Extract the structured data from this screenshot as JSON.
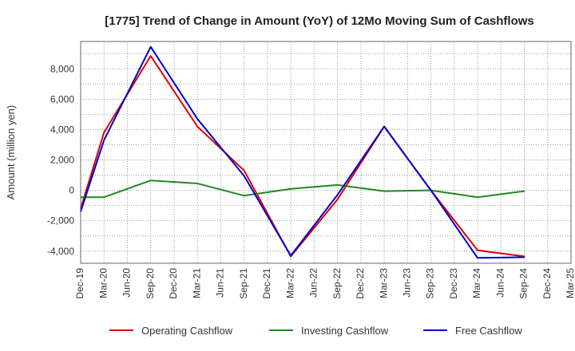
{
  "chart_data": {
    "type": "line",
    "title": "[1775]  Trend of Change in Amount (YoY) of 12Mo Moving Sum of Cashflows",
    "xlabel": "",
    "ylabel": "Amount (million yen)",
    "categories": [
      "Dec-19",
      "Mar-20",
      "Jun-20",
      "Sep-20",
      "Dec-20",
      "Mar-21",
      "Jun-21",
      "Sep-21",
      "Dec-21",
      "Mar-22",
      "Jun-22",
      "Sep-22",
      "Dec-22",
      "Mar-23",
      "Jun-23",
      "Sep-23",
      "Dec-23",
      "Mar-24",
      "Jun-24",
      "Sep-24",
      "Dec-24",
      "Mar-25"
    ],
    "ylim": [
      -4800,
      9800
    ],
    "yticks": [
      -4000,
      -2000,
      0,
      2000,
      4000,
      6000,
      8000
    ],
    "ytick_labels": [
      "-4,000",
      "-2,000",
      "0",
      "2,000",
      "4,000",
      "6,000",
      "8,000"
    ],
    "grid": true,
    "legend_position": "bottom",
    "series": [
      {
        "name": "Operating Cashflow",
        "color": "#dd0000",
        "values": [
          -1200,
          3800,
          null,
          8850,
          null,
          4200,
          null,
          1300,
          null,
          -4350,
          null,
          -600,
          null,
          4200,
          null,
          0,
          null,
          -3950,
          null,
          -4350,
          null,
          null
        ]
      },
      {
        "name": "Investing Cashflow",
        "color": "#228822",
        "values": [
          -450,
          -450,
          null,
          650,
          null,
          450,
          null,
          -350,
          null,
          100,
          null,
          350,
          null,
          -50,
          null,
          0,
          null,
          -450,
          null,
          -50,
          null,
          null
        ]
      },
      {
        "name": "Free Cashflow",
        "color": "#0000cc",
        "values": [
          -1400,
          3300,
          null,
          9450,
          null,
          4700,
          null,
          950,
          null,
          -4300,
          null,
          -300,
          null,
          4200,
          null,
          0,
          null,
          -4450,
          null,
          -4400,
          null,
          null
        ]
      }
    ]
  }
}
